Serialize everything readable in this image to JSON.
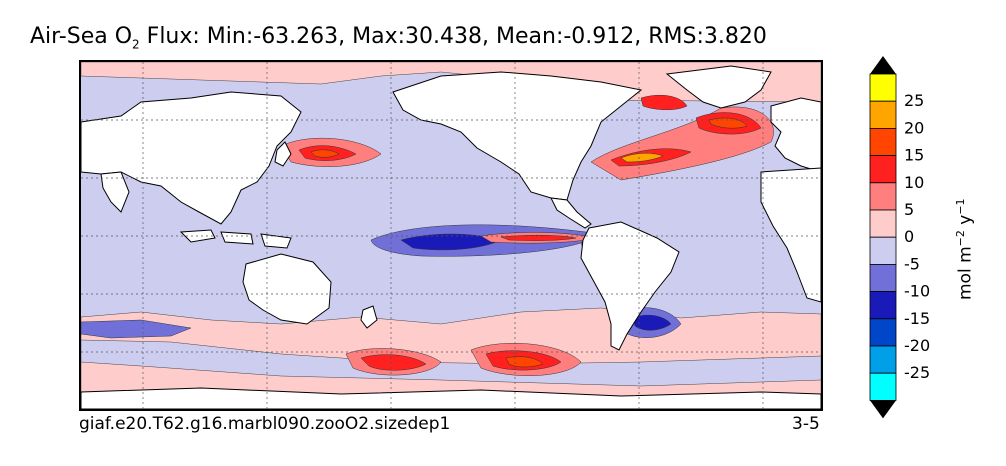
{
  "title": {
    "prefix": "Air-Sea O",
    "subscript": "2",
    "rest": " Flux: Min:-63.263, Max:30.438, Mean:-0.912, RMS:3.820"
  },
  "caption": {
    "left": "giaf.e20.T62.g16.marbl090.zooO2.sizedep1",
    "right": "3-5"
  },
  "colorbar": {
    "unit_parts": [
      "mol m",
      "−2",
      " y",
      "−1"
    ],
    "levels": [
      {
        "label": "25",
        "color": "#ffff00"
      },
      {
        "label": "20",
        "color": "#ffa500"
      },
      {
        "label": "15",
        "color": "#ff4500"
      },
      {
        "label": "10",
        "color": "#ff2020"
      },
      {
        "label": "5",
        "color": "#ff7f7f"
      },
      {
        "label": "0",
        "color": "#ffcccc"
      },
      {
        "label": "-5",
        "color": "#cdcdf0"
      },
      {
        "label": "-10",
        "color": "#7070d8"
      },
      {
        "label": "-15",
        "color": "#1a1ab8"
      },
      {
        "label": "-20",
        "color": "#0046c8"
      },
      {
        "label": "-25",
        "color": "#00a0e8"
      },
      {
        "label": "",
        "color": "#00ffff"
      }
    ],
    "top_arrow_color": "#000000",
    "bottom_arrow_color": "#000000"
  },
  "map": {
    "ocean_color": "#cdcdf0",
    "land_color": "#ffffff",
    "grid": true
  }
}
